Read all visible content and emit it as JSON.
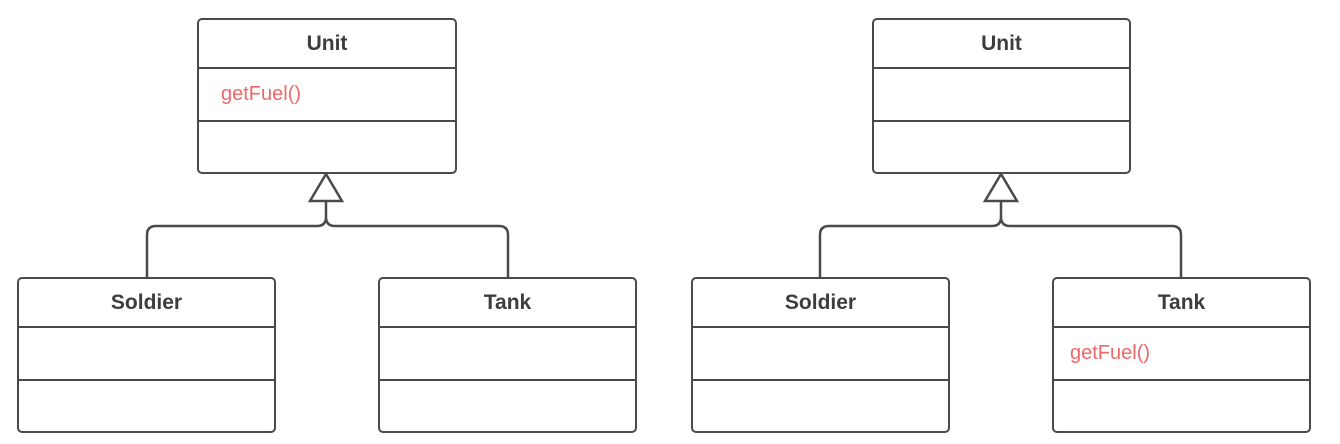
{
  "diagrams": [
    {
      "parent": {
        "name": "Unit",
        "attribute": "getFuel()"
      },
      "children": [
        {
          "name": "Soldier",
          "attribute": ""
        },
        {
          "name": "Tank",
          "attribute": ""
        }
      ]
    },
    {
      "parent": {
        "name": "Unit",
        "attribute": ""
      },
      "children": [
        {
          "name": "Soldier",
          "attribute": ""
        },
        {
          "name": "Tank",
          "attribute": "getFuel()"
        }
      ]
    }
  ],
  "colors": {
    "stroke": "#4a4a4a",
    "highlight_text": "#f06767",
    "class_name_text": "#3d3d3d"
  }
}
